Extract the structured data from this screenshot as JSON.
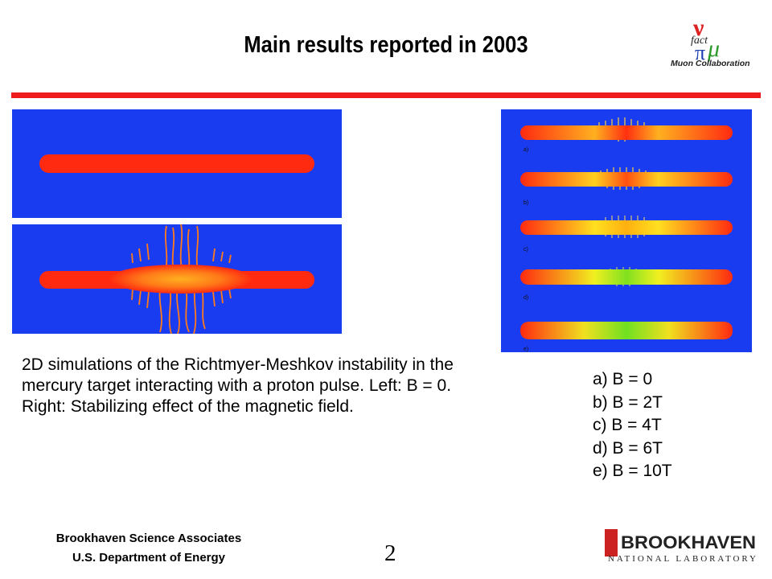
{
  "slide": {
    "title": "Main results reported in 2003",
    "page_number": "2"
  },
  "logos": {
    "muon": {
      "icon": "muon-collaboration-logo-icon",
      "glyphs": [
        "ν",
        "fact",
        "π",
        "μ"
      ],
      "text": "Muon Collaboration"
    },
    "bnl": {
      "icon": "brookhaven-logo-icon",
      "name": "BROOKHAVEN",
      "subtitle": "NATIONAL LABORATORY"
    }
  },
  "simulation_left": {
    "panels": [
      "initial-state",
      "after-proton-pulse"
    ]
  },
  "simulation_right": {
    "panel_labels": [
      "a)",
      "b)",
      "c)",
      "d)",
      "e)"
    ]
  },
  "caption": "2D simulations of the Richtmyer-Meshkov instability in the mercury target interacting with a proton pulse. Left: B = 0. Right: Stabilizing effect of the magnetic field.",
  "legend": [
    "a)  B = 0",
    "b)  B = 2T",
    "c)  B = 4T",
    "d)  B = 6T",
    "e)  B = 10T"
  ],
  "footer": {
    "org_line1": "Brookhaven Science Associates",
    "org_line2": "U.S. Department of Energy"
  },
  "colors": {
    "accent_rule": "#ee1c1c",
    "sim_background": "#1a3cf0",
    "mercury": "#ff2a10"
  }
}
